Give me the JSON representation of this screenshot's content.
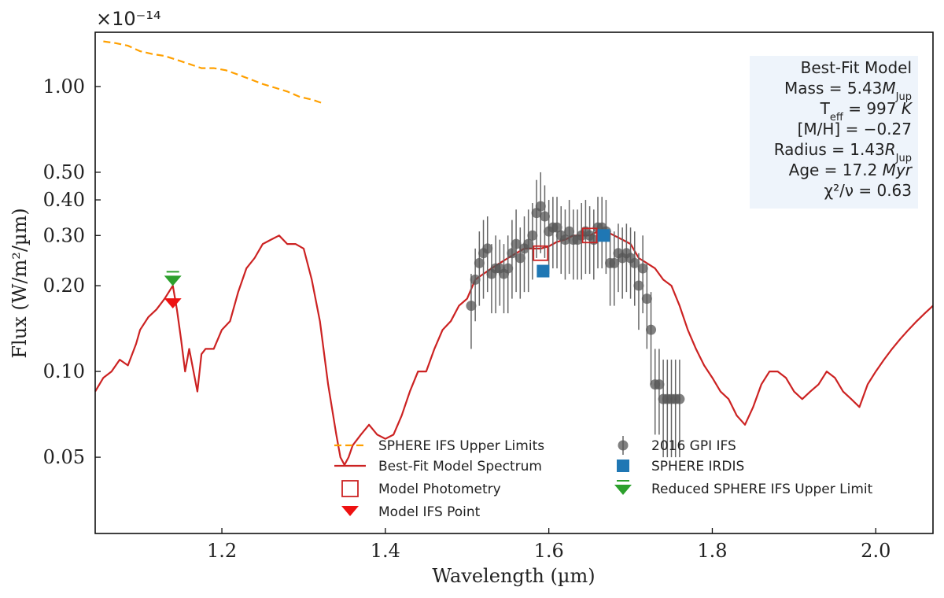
{
  "chart_data": {
    "type": "line",
    "xlabel": "Wavelength (µm)",
    "ylabel": "Flux (W/m²/µm)",
    "y_multiplier": "×10⁻¹⁴",
    "xlim": [
      1.045,
      2.07
    ],
    "ylim": [
      0.027,
      1.55
    ],
    "yscale": "log",
    "x_ticks": [
      {
        "value": 1.2,
        "label": "1.2"
      },
      {
        "value": 1.4,
        "label": "1.4"
      },
      {
        "value": 1.6,
        "label": "1.6"
      },
      {
        "value": 1.8,
        "label": "1.8"
      },
      {
        "value": 2.0,
        "label": "2.0"
      }
    ],
    "y_ticks": [
      {
        "value": 0.05,
        "label": "0.05"
      },
      {
        "value": 0.1,
        "label": "0.10"
      },
      {
        "value": 0.2,
        "label": "0.20"
      },
      {
        "value": 0.3,
        "label": "0.30"
      },
      {
        "value": 0.4,
        "label": "0.40"
      },
      {
        "value": 0.5,
        "label": "0.50"
      },
      {
        "value": 1.0,
        "label": "1.00"
      }
    ],
    "series": [
      {
        "name": "SPHERE IFS Upper Limits",
        "style": "dashed-line",
        "color": "#FFA000",
        "x": [
          1.055,
          1.07,
          1.085,
          1.1,
          1.115,
          1.13,
          1.145,
          1.16,
          1.175,
          1.19,
          1.205,
          1.22,
          1.235,
          1.25,
          1.265,
          1.28,
          1.295,
          1.31,
          1.325
        ],
        "y": [
          1.44,
          1.42,
          1.39,
          1.33,
          1.3,
          1.28,
          1.24,
          1.2,
          1.16,
          1.16,
          1.14,
          1.1,
          1.06,
          1.02,
          0.99,
          0.96,
          0.92,
          0.9,
          0.87
        ]
      },
      {
        "name": "Best-Fit Model Spectrum",
        "style": "line",
        "color": "#CC2222",
        "x": [
          1.045,
          1.055,
          1.065,
          1.075,
          1.085,
          1.095,
          1.1,
          1.11,
          1.12,
          1.13,
          1.14,
          1.145,
          1.15,
          1.155,
          1.16,
          1.17,
          1.175,
          1.18,
          1.19,
          1.2,
          1.21,
          1.22,
          1.23,
          1.24,
          1.25,
          1.26,
          1.27,
          1.28,
          1.29,
          1.3,
          1.31,
          1.32,
          1.33,
          1.34,
          1.345,
          1.35,
          1.355,
          1.36,
          1.37,
          1.38,
          1.39,
          1.4,
          1.41,
          1.42,
          1.43,
          1.44,
          1.45,
          1.46,
          1.47,
          1.48,
          1.49,
          1.5,
          1.51,
          1.52,
          1.53,
          1.54,
          1.55,
          1.56,
          1.57,
          1.58,
          1.59,
          1.6,
          1.61,
          1.62,
          1.63,
          1.64,
          1.65,
          1.66,
          1.67,
          1.68,
          1.69,
          1.7,
          1.71,
          1.72,
          1.73,
          1.74,
          1.75,
          1.76,
          1.77,
          1.78,
          1.79,
          1.8,
          1.81,
          1.82,
          1.83,
          1.84,
          1.85,
          1.86,
          1.87,
          1.88,
          1.89,
          1.9,
          1.91,
          1.92,
          1.93,
          1.94,
          1.95,
          1.96,
          1.97,
          1.98,
          1.99,
          2.0,
          2.01,
          2.02,
          2.03,
          2.04,
          2.05,
          2.06,
          2.07
        ],
        "y": [
          0.085,
          0.095,
          0.1,
          0.11,
          0.105,
          0.125,
          0.14,
          0.155,
          0.165,
          0.18,
          0.2,
          0.165,
          0.13,
          0.1,
          0.12,
          0.085,
          0.115,
          0.12,
          0.12,
          0.14,
          0.15,
          0.19,
          0.23,
          0.25,
          0.28,
          0.29,
          0.3,
          0.28,
          0.28,
          0.27,
          0.21,
          0.15,
          0.09,
          0.06,
          0.05,
          0.047,
          0.05,
          0.055,
          0.06,
          0.065,
          0.06,
          0.058,
          0.06,
          0.07,
          0.085,
          0.1,
          0.1,
          0.12,
          0.14,
          0.15,
          0.17,
          0.18,
          0.21,
          0.22,
          0.23,
          0.24,
          0.25,
          0.26,
          0.27,
          0.27,
          0.27,
          0.275,
          0.285,
          0.29,
          0.3,
          0.3,
          0.3,
          0.31,
          0.31,
          0.3,
          0.29,
          0.28,
          0.25,
          0.24,
          0.23,
          0.21,
          0.2,
          0.17,
          0.14,
          0.12,
          0.105,
          0.095,
          0.085,
          0.08,
          0.07,
          0.065,
          0.075,
          0.09,
          0.1,
          0.1,
          0.095,
          0.085,
          0.08,
          0.085,
          0.09,
          0.1,
          0.095,
          0.085,
          0.08,
          0.075,
          0.09,
          0.1,
          0.11,
          0.12,
          0.13,
          0.14,
          0.15,
          0.16,
          0.17
        ]
      },
      {
        "name": "Model Photometry",
        "style": "open-square",
        "color": "#CC2222",
        "x": [
          1.59,
          1.65
        ],
        "y": [
          0.26,
          0.3
        ]
      },
      {
        "name": "Model IFS Point",
        "style": "down-triangle",
        "color": "#EE1111",
        "x": [
          1.14
        ],
        "y": [
          0.175
        ]
      },
      {
        "name": "2016 GPI IFS",
        "style": "errorbar-circle",
        "color": "#555555",
        "x": [
          1.505,
          1.51,
          1.515,
          1.52,
          1.525,
          1.53,
          1.535,
          1.54,
          1.545,
          1.55,
          1.555,
          1.56,
          1.565,
          1.57,
          1.575,
          1.58,
          1.585,
          1.59,
          1.595,
          1.6,
          1.605,
          1.61,
          1.615,
          1.62,
          1.625,
          1.63,
          1.635,
          1.64,
          1.645,
          1.65,
          1.655,
          1.66,
          1.665,
          1.67,
          1.675,
          1.68,
          1.685,
          1.69,
          1.695,
          1.7,
          1.705,
          1.71,
          1.715,
          1.72,
          1.725,
          1.73,
          1.735,
          1.74,
          1.745,
          1.75,
          1.755,
          1.76
        ],
        "y": [
          0.17,
          0.21,
          0.24,
          0.26,
          0.27,
          0.22,
          0.23,
          0.23,
          0.22,
          0.23,
          0.26,
          0.28,
          0.25,
          0.27,
          0.28,
          0.3,
          0.36,
          0.38,
          0.35,
          0.31,
          0.32,
          0.32,
          0.3,
          0.29,
          0.31,
          0.29,
          0.29,
          0.3,
          0.31,
          0.3,
          0.29,
          0.32,
          0.32,
          0.31,
          0.24,
          0.24,
          0.26,
          0.25,
          0.26,
          0.25,
          0.24,
          0.2,
          0.23,
          0.18,
          0.14,
          0.09,
          0.09,
          0.08,
          0.08,
          0.08,
          0.08,
          0.08
        ],
        "yerr": [
          0.05,
          0.06,
          0.07,
          0.08,
          0.08,
          0.06,
          0.07,
          0.06,
          0.06,
          0.07,
          0.08,
          0.09,
          0.07,
          0.08,
          0.09,
          0.09,
          0.11,
          0.12,
          0.1,
          0.09,
          0.09,
          0.09,
          0.08,
          0.08,
          0.09,
          0.08,
          0.08,
          0.09,
          0.09,
          0.08,
          0.08,
          0.09,
          0.09,
          0.09,
          0.07,
          0.07,
          0.07,
          0.07,
          0.07,
          0.07,
          0.07,
          0.06,
          0.07,
          0.06,
          0.05,
          0.03,
          0.03,
          0.03,
          0.03,
          0.03,
          0.03,
          0.03
        ]
      },
      {
        "name": "SPHERE IRDIS",
        "style": "filled-square-errorbar",
        "color": "#1F77B4",
        "x": [
          1.593,
          1.667
        ],
        "y": [
          0.225,
          0.3
        ],
        "yerr": [
          0.01,
          0.01
        ]
      },
      {
        "name": "Reduced SPHERE IFS Upper Limit",
        "style": "down-triangle",
        "color": "#2CA02C",
        "x": [
          1.14
        ],
        "y": [
          0.21
        ]
      }
    ],
    "legend": {
      "placement": "lower-center",
      "entries": [
        {
          "label": "SPHERE IFS Upper Limits",
          "series": 0
        },
        {
          "label": "Best-Fit Model Spectrum",
          "series": 1
        },
        {
          "label": "Model Photometry",
          "series": 2
        },
        {
          "label": "Model IFS Point",
          "series": 3
        },
        {
          "label": "2016 GPI IFS",
          "series": 4
        },
        {
          "label": "SPHERE IRDIS",
          "series": 5
        },
        {
          "label": "Reduced SPHERE IFS Upper Limit",
          "series": 6
        }
      ]
    },
    "annotation_box": {
      "placement": "top-right",
      "background": "#EEF4FB",
      "title": "Best-Fit Model",
      "lines": [
        {
          "label": "Mass = ",
          "value": "5.43",
          "unit": "M",
          "unit_sub": "Jup"
        },
        {
          "label": "T",
          "label_sub": "eff",
          "value": " = 997",
          "unit": " K",
          "unit_sub": ""
        },
        {
          "label": "[M/H] = ",
          "value": "−0.27",
          "unit": "",
          "unit_sub": ""
        },
        {
          "label": "Radius = ",
          "value": "1.43",
          "unit": "R",
          "unit_sub": "Jup"
        },
        {
          "label": "Age = ",
          "value": "17.2",
          "unit": " Myr",
          "unit_sub": ""
        },
        {
          "label": "χ²/ν = ",
          "value": "0.63",
          "unit": "",
          "unit_sub": ""
        }
      ]
    }
  }
}
